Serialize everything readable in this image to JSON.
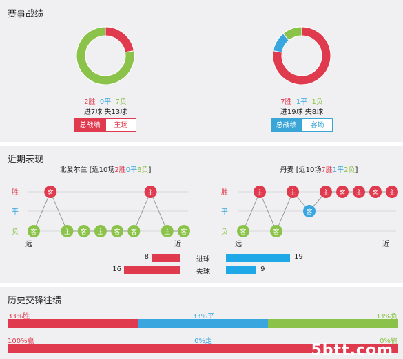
{
  "section1": {
    "title": "赛事战绩",
    "left": {
      "win": "2胜",
      "draw": "0平",
      "loss": "7负",
      "goals": "进7球  失13球",
      "wins_n": 2,
      "draws_n": 0,
      "losses_n": 7,
      "btn_active": "总战绩",
      "btn_inactive": "主场"
    },
    "right": {
      "win": "7胜",
      "draw": "1平",
      "loss": "1负",
      "goals": "进19球  失8球",
      "wins_n": 7,
      "draws_n": 1,
      "losses_n": 1,
      "btn_active": "总战绩",
      "btn_inactive": "客场"
    }
  },
  "section2": {
    "title": "近期表现",
    "y_labels": {
      "win": "胜",
      "draw": "平",
      "loss": "负"
    },
    "axis": {
      "far": "远",
      "near": "近"
    },
    "left": {
      "name_prefix": "北爱尔兰 [近10场",
      "win": "2胜",
      "draw": "0平",
      "loss": "8负",
      "suffix": "]",
      "results": [
        "L",
        "W",
        "L",
        "L",
        "L",
        "L",
        "L",
        "W",
        "L",
        "L"
      ],
      "venues": [
        "客",
        "客",
        "主",
        "客",
        "主",
        "客",
        "客",
        "主",
        "主",
        "客"
      ]
    },
    "right": {
      "name_prefix": "丹麦 [近10场",
      "win": "7胜",
      "draw": "1平",
      "loss": "2负",
      "suffix": "]",
      "results": [
        "L",
        "W",
        "L",
        "W",
        "D",
        "W",
        "W",
        "W",
        "W",
        "W"
      ],
      "venues": [
        "客",
        "主",
        "客",
        "主",
        "客",
        "主",
        "客",
        "主",
        "客",
        "主"
      ]
    },
    "goals_for_label": "进球",
    "goals_against_label": "失球",
    "left_for": "8",
    "left_against": "16",
    "right_for": "19",
    "right_against": "9",
    "left_for_n": 8,
    "left_against_n": 16,
    "right_for_n": 19,
    "right_against_n": 9
  },
  "section3": {
    "title": "历史交锋往绩",
    "row1": {
      "left": "33%胜",
      "mid": "33%平",
      "right": "33%负",
      "a": 33.3,
      "b": 33.3,
      "c": 33.4
    },
    "row2": {
      "left": "100%赢",
      "mid": "0%走",
      "right": "0%输",
      "a": 100,
      "b": 0,
      "c": 0
    }
  },
  "watermark": "5btt.com",
  "colors": {
    "win": "#e03a4e",
    "draw": "#3aa6e0",
    "loss": "#8bc34a",
    "blue_btn": "#3aa6d8"
  }
}
